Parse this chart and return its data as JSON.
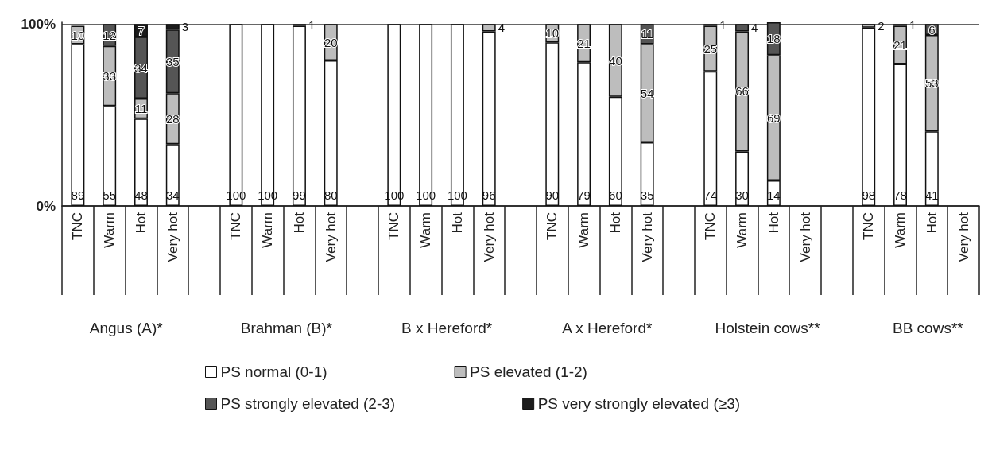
{
  "chart_data": {
    "type": "bar",
    "stacked": true,
    "data_labels": true,
    "grid": "y",
    "legend": "bottom",
    "categories": [
      "TNC",
      "Warm",
      "Hot",
      "Very hot",
      null,
      "TNC",
      "Warm",
      "Hot",
      "Very hot",
      null,
      "TNC",
      "Warm",
      "Hot",
      "Very hot",
      null,
      "TNC",
      "Warm",
      "Hot",
      "Very hot",
      null,
      "TNC",
      "Warm",
      "Hot",
      "Very hot",
      null,
      "TNC",
      "Warm",
      "Hot",
      "Very hot"
    ],
    "annotations": [
      "Angus (A)*",
      "Brahman (B)*",
      "B x Hereford*",
      "A x Hereford*",
      "Holstein cows**",
      "BB cows**"
    ],
    "ylim": [
      0,
      101
    ],
    "yticks": [
      {
        "value": 0,
        "label": "0%"
      },
      {
        "value": 100,
        "label": "100%"
      }
    ],
    "series": [
      {
        "name": "PS normal (0-1)",
        "color": "#ffffff",
        "values": [
          89,
          55,
          48,
          34,
          null,
          100,
          100,
          99,
          80,
          null,
          100,
          100,
          100,
          96,
          null,
          90,
          79,
          60,
          35,
          null,
          74,
          30,
          14,
          null,
          null,
          98,
          78,
          41,
          null
        ]
      },
      {
        "name": "PS elevated (1-2)",
        "color": "#bdbdbd",
        "values": [
          10,
          33,
          11,
          28,
          null,
          null,
          null,
          1,
          20,
          null,
          null,
          null,
          null,
          4,
          null,
          10,
          21,
          40,
          54,
          null,
          25,
          66,
          69,
          null,
          null,
          2,
          21,
          53,
          null
        ]
      },
      {
        "name": "PS strongly elevated (2-3)",
        "color": "#555555",
        "values": [
          null,
          12,
          34,
          35,
          null,
          null,
          null,
          null,
          null,
          null,
          null,
          null,
          null,
          null,
          null,
          null,
          null,
          null,
          11,
          null,
          1,
          4,
          18,
          null,
          null,
          null,
          1,
          6,
          null
        ]
      },
      {
        "name": "PS very strongly elevated (≥3)",
        "color": "#1c1c1c",
        "values": [
          null,
          null,
          7,
          3,
          null,
          null,
          null,
          null,
          null,
          null,
          null,
          null,
          null,
          null,
          null,
          null,
          null,
          null,
          null,
          null,
          null,
          null,
          null,
          null,
          null,
          null,
          null,
          null,
          null
        ]
      }
    ]
  }
}
